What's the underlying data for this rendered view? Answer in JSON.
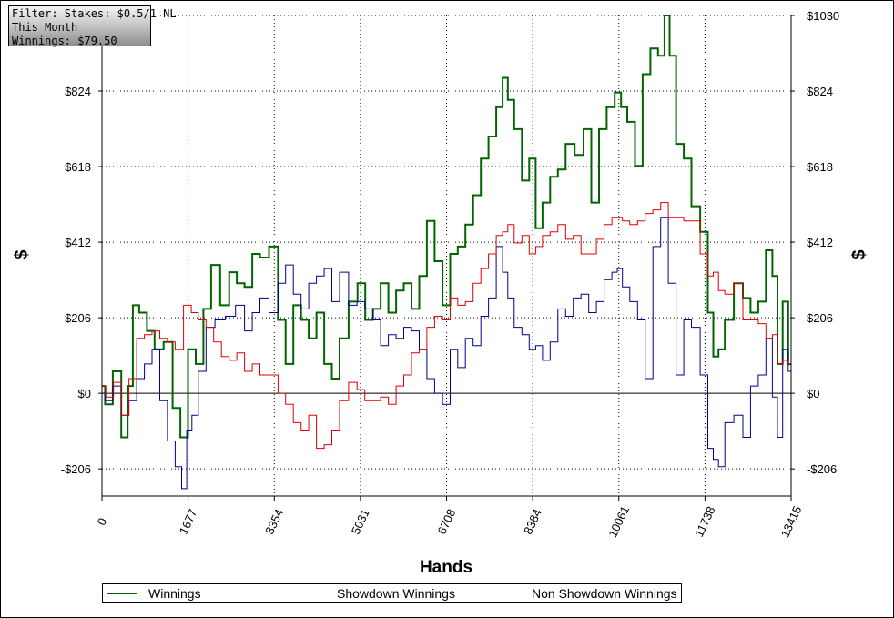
{
  "filter_box": {
    "line1": "Filter: Stakes: $0.5/1 NL",
    "line2": "This Month",
    "line3": "Winnings: $79.50"
  },
  "colors": {
    "winnings": "#006400",
    "showdown": "#00008b",
    "non_showdown": "#e00000",
    "grid": "#000000"
  },
  "chart_data": {
    "type": "line",
    "xlabel": "Hands",
    "ylabel_left": "$",
    "ylabel_right": "$",
    "xlim": [
      0,
      13415
    ],
    "ylim": [
      -280,
      1030
    ],
    "x_ticks": [
      0,
      1677,
      3354,
      5031,
      6708,
      8384,
      10061,
      11738,
      13415
    ],
    "y_ticks": [
      -206,
      0,
      206,
      412,
      618,
      824,
      1030
    ],
    "y_tick_labels": [
      "-$206",
      "$0",
      "$206",
      "$412",
      "$618",
      "$824",
      "$1030"
    ],
    "grid": true,
    "legend_placement": "bottom",
    "series": [
      {
        "name": "Winnings",
        "color": "#006400",
        "points": [
          [
            0,
            20
          ],
          [
            120,
            -30
          ],
          [
            300,
            60
          ],
          [
            450,
            -120
          ],
          [
            550,
            20
          ],
          [
            650,
            240
          ],
          [
            800,
            220
          ],
          [
            950,
            170
          ],
          [
            1100,
            120
          ],
          [
            1300,
            140
          ],
          [
            1450,
            -40
          ],
          [
            1600,
            -120
          ],
          [
            1750,
            120
          ],
          [
            1900,
            80
          ],
          [
            2050,
            230
          ],
          [
            2200,
            350
          ],
          [
            2400,
            240
          ],
          [
            2550,
            330
          ],
          [
            2700,
            300
          ],
          [
            2850,
            290
          ],
          [
            3000,
            380
          ],
          [
            3150,
            370
          ],
          [
            3354,
            400
          ],
          [
            3500,
            200
          ],
          [
            3650,
            80
          ],
          [
            3800,
            240
          ],
          [
            3950,
            200
          ],
          [
            4100,
            150
          ],
          [
            4250,
            220
          ],
          [
            4400,
            80
          ],
          [
            4550,
            40
          ],
          [
            4700,
            150
          ],
          [
            4900,
            250
          ],
          [
            5050,
            300
          ],
          [
            5200,
            200
          ],
          [
            5350,
            230
          ],
          [
            5500,
            300
          ],
          [
            5650,
            220
          ],
          [
            5800,
            280
          ],
          [
            5950,
            300
          ],
          [
            6100,
            230
          ],
          [
            6250,
            320
          ],
          [
            6400,
            470
          ],
          [
            6550,
            360
          ],
          [
            6708,
            240
          ],
          [
            6850,
            380
          ],
          [
            7000,
            400
          ],
          [
            7150,
            460
          ],
          [
            7300,
            540
          ],
          [
            7450,
            640
          ],
          [
            7600,
            700
          ],
          [
            7750,
            780
          ],
          [
            7850,
            860
          ],
          [
            7950,
            800
          ],
          [
            8100,
            720
          ],
          [
            8250,
            580
          ],
          [
            8384,
            640
          ],
          [
            8500,
            450
          ],
          [
            8650,
            520
          ],
          [
            8800,
            590
          ],
          [
            8950,
            610
          ],
          [
            9100,
            680
          ],
          [
            9300,
            650
          ],
          [
            9450,
            720
          ],
          [
            9600,
            520
          ],
          [
            9750,
            720
          ],
          [
            9900,
            780
          ],
          [
            10061,
            820
          ],
          [
            10150,
            780
          ],
          [
            10300,
            740
          ],
          [
            10450,
            620
          ],
          [
            10600,
            870
          ],
          [
            10750,
            940
          ],
          [
            10900,
            920
          ],
          [
            11000,
            1030
          ],
          [
            11100,
            920
          ],
          [
            11250,
            680
          ],
          [
            11400,
            640
          ],
          [
            11550,
            510
          ],
          [
            11738,
            440
          ],
          [
            11850,
            220
          ],
          [
            11950,
            100
          ],
          [
            12050,
            120
          ],
          [
            12200,
            200
          ],
          [
            12400,
            300
          ],
          [
            12550,
            260
          ],
          [
            12700,
            220
          ],
          [
            12850,
            250
          ],
          [
            13000,
            390
          ],
          [
            13100,
            320
          ],
          [
            13200,
            80
          ],
          [
            13300,
            250
          ],
          [
            13415,
            79.5
          ]
        ]
      },
      {
        "name": "Showdown Winnings",
        "color": "#00008b",
        "points": [
          [
            0,
            0
          ],
          [
            120,
            -20
          ],
          [
            300,
            20
          ],
          [
            450,
            -60
          ],
          [
            600,
            -20
          ],
          [
            750,
            40
          ],
          [
            900,
            80
          ],
          [
            1050,
            120
          ],
          [
            1200,
            -20
          ],
          [
            1350,
            -130
          ],
          [
            1500,
            -200
          ],
          [
            1600,
            -260
          ],
          [
            1700,
            -100
          ],
          [
            1800,
            -60
          ],
          [
            1950,
            60
          ],
          [
            2100,
            180
          ],
          [
            2300,
            200
          ],
          [
            2500,
            210
          ],
          [
            2700,
            240
          ],
          [
            2850,
            170
          ],
          [
            3000,
            220
          ],
          [
            3150,
            260
          ],
          [
            3354,
            220
          ],
          [
            3500,
            300
          ],
          [
            3650,
            350
          ],
          [
            3800,
            270
          ],
          [
            3950,
            230
          ],
          [
            4100,
            300
          ],
          [
            4250,
            320
          ],
          [
            4400,
            340
          ],
          [
            4550,
            250
          ],
          [
            4700,
            330
          ],
          [
            4900,
            240
          ],
          [
            5031,
            250
          ],
          [
            5200,
            230
          ],
          [
            5350,
            200
          ],
          [
            5500,
            130
          ],
          [
            5650,
            160
          ],
          [
            5800,
            150
          ],
          [
            5950,
            180
          ],
          [
            6100,
            170
          ],
          [
            6250,
            120
          ],
          [
            6400,
            40
          ],
          [
            6550,
            0
          ],
          [
            6708,
            -30
          ],
          [
            6850,
            120
          ],
          [
            7000,
            70
          ],
          [
            7150,
            150
          ],
          [
            7300,
            130
          ],
          [
            7450,
            210
          ],
          [
            7600,
            260
          ],
          [
            7750,
            400
          ],
          [
            7850,
            330
          ],
          [
            7950,
            260
          ],
          [
            8100,
            180
          ],
          [
            8250,
            160
          ],
          [
            8384,
            120
          ],
          [
            8500,
            130
          ],
          [
            8650,
            90
          ],
          [
            8800,
            140
          ],
          [
            8950,
            230
          ],
          [
            9100,
            210
          ],
          [
            9250,
            260
          ],
          [
            9400,
            270
          ],
          [
            9550,
            220
          ],
          [
            9700,
            250
          ],
          [
            9850,
            310
          ],
          [
            10000,
            330
          ],
          [
            10061,
            340
          ],
          [
            10200,
            290
          ],
          [
            10350,
            250
          ],
          [
            10500,
            200
          ],
          [
            10650,
            40
          ],
          [
            10800,
            400
          ],
          [
            10950,
            480
          ],
          [
            11100,
            300
          ],
          [
            11250,
            50
          ],
          [
            11400,
            200
          ],
          [
            11550,
            180
          ],
          [
            11738,
            50
          ],
          [
            11850,
            -150
          ],
          [
            11950,
            -180
          ],
          [
            12050,
            -200
          ],
          [
            12200,
            -80
          ],
          [
            12400,
            -60
          ],
          [
            12550,
            -120
          ],
          [
            12700,
            20
          ],
          [
            12850,
            50
          ],
          [
            13000,
            150
          ],
          [
            13100,
            -10
          ],
          [
            13200,
            -120
          ],
          [
            13300,
            120
          ],
          [
            13415,
            60
          ]
        ]
      },
      {
        "name": "Non Showdown Winnings",
        "color": "#e00000",
        "points": [
          [
            0,
            20
          ],
          [
            150,
            -10
          ],
          [
            300,
            30
          ],
          [
            450,
            -60
          ],
          [
            600,
            40
          ],
          [
            750,
            150
          ],
          [
            900,
            160
          ],
          [
            1050,
            170
          ],
          [
            1200,
            150
          ],
          [
            1350,
            140
          ],
          [
            1500,
            120
          ],
          [
            1677,
            240
          ],
          [
            1800,
            220
          ],
          [
            1950,
            200
          ],
          [
            2100,
            180
          ],
          [
            2250,
            140
          ],
          [
            2400,
            100
          ],
          [
            2550,
            90
          ],
          [
            2700,
            110
          ],
          [
            2850,
            60
          ],
          [
            3000,
            80
          ],
          [
            3150,
            50
          ],
          [
            3354,
            50
          ],
          [
            3500,
            0
          ],
          [
            3650,
            -30
          ],
          [
            3800,
            -80
          ],
          [
            3950,
            -100
          ],
          [
            4100,
            -60
          ],
          [
            4250,
            -150
          ],
          [
            4400,
            -140
          ],
          [
            4550,
            -100
          ],
          [
            4700,
            -20
          ],
          [
            4900,
            30
          ],
          [
            5031,
            10
          ],
          [
            5200,
            -20
          ],
          [
            5350,
            -20
          ],
          [
            5500,
            -10
          ],
          [
            5650,
            -30
          ],
          [
            5800,
            20
          ],
          [
            5950,
            50
          ],
          [
            6100,
            110
          ],
          [
            6250,
            120
          ],
          [
            6400,
            180
          ],
          [
            6550,
            210
          ],
          [
            6708,
            200
          ],
          [
            6850,
            260
          ],
          [
            7000,
            240
          ],
          [
            7150,
            250
          ],
          [
            7300,
            300
          ],
          [
            7450,
            340
          ],
          [
            7600,
            380
          ],
          [
            7750,
            430
          ],
          [
            7850,
            440
          ],
          [
            7950,
            460
          ],
          [
            8100,
            410
          ],
          [
            8250,
            430
          ],
          [
            8384,
            380
          ],
          [
            8500,
            400
          ],
          [
            8650,
            430
          ],
          [
            8800,
            440
          ],
          [
            8950,
            460
          ],
          [
            9100,
            420
          ],
          [
            9250,
            430
          ],
          [
            9400,
            380
          ],
          [
            9550,
            380
          ],
          [
            9700,
            420
          ],
          [
            9850,
            460
          ],
          [
            10000,
            480
          ],
          [
            10061,
            480
          ],
          [
            10200,
            470
          ],
          [
            10350,
            460
          ],
          [
            10500,
            470
          ],
          [
            10650,
            490
          ],
          [
            10800,
            500
          ],
          [
            10950,
            520
          ],
          [
            11100,
            480
          ],
          [
            11250,
            480
          ],
          [
            11400,
            470
          ],
          [
            11550,
            470
          ],
          [
            11738,
            380
          ],
          [
            11850,
            320
          ],
          [
            11950,
            330
          ],
          [
            12050,
            280
          ],
          [
            12200,
            270
          ],
          [
            12400,
            300
          ],
          [
            12550,
            200
          ],
          [
            12700,
            200
          ],
          [
            12850,
            190
          ],
          [
            13000,
            150
          ],
          [
            13100,
            160
          ],
          [
            13200,
            80
          ],
          [
            13300,
            90
          ],
          [
            13415,
            80
          ]
        ]
      }
    ]
  }
}
